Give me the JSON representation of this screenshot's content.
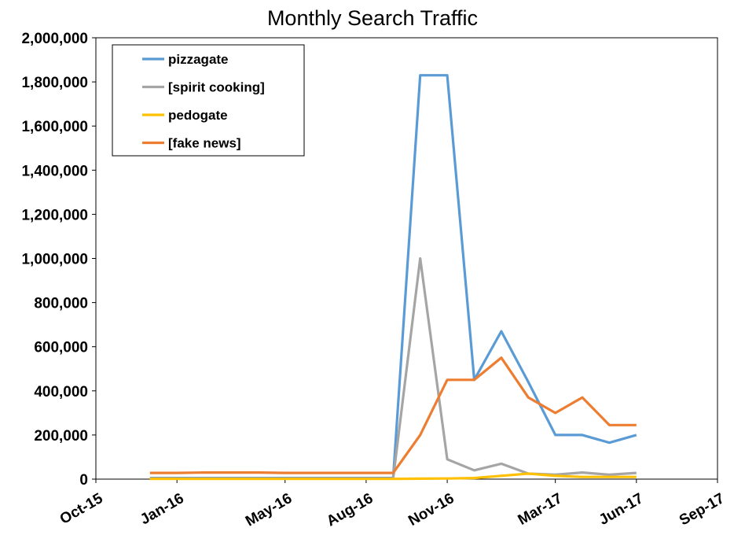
{
  "chart_data": {
    "type": "line",
    "title": "Monthly Search Traffic",
    "xlabel": "",
    "ylabel": "",
    "ylim": [
      0,
      2000000
    ],
    "y_ticks": [
      "0",
      "200,000",
      "400,000",
      "600,000",
      "800,000",
      "1,000,000",
      "1,200,000",
      "1,400,000",
      "1,600,000",
      "1,800,000",
      "2,000,000"
    ],
    "x_ticks": [
      "Oct-15",
      "Jan-16",
      "May-16",
      "Aug-16",
      "Nov-16",
      "Mar-17",
      "Jun-17",
      "Sep-17"
    ],
    "x_tick_months": [
      0,
      3,
      7,
      10,
      13,
      17,
      20,
      23
    ],
    "x": [
      "Dec-15",
      "Jan-16",
      "Feb-16",
      "Mar-16",
      "Apr-16",
      "May-16",
      "Jun-16",
      "Jul-16",
      "Aug-16",
      "Sep-16",
      "Oct-16",
      "Nov-16",
      "Dec-16",
      "Jan-17",
      "Feb-17",
      "Mar-17",
      "Apr-17",
      "May-17",
      "Jun-17",
      "Jul-17"
    ],
    "x_month_index": [
      2,
      3,
      4,
      5,
      6,
      7,
      8,
      9,
      10,
      11,
      12,
      13,
      14,
      15,
      16,
      17,
      18,
      19,
      20,
      21
    ],
    "grid": false,
    "legend_position": "top-left",
    "series": [
      {
        "name": "pizzagate",
        "color": "#5b9bd5",
        "values": [
          5000,
          5000,
          5000,
          5000,
          5000,
          5000,
          5000,
          5000,
          5000,
          5000,
          1830000,
          1830000,
          450000,
          670000,
          440000,
          200000,
          200000,
          165000,
          200000,
          null
        ]
      },
      {
        "name": "[spirit cooking]",
        "color": "#a5a5a5",
        "values": [
          3000,
          3000,
          3000,
          3000,
          3000,
          3000,
          3000,
          3000,
          3000,
          3000,
          1000000,
          90000,
          40000,
          70000,
          25000,
          20000,
          30000,
          20000,
          28000,
          null
        ]
      },
      {
        "name": "pedogate",
        "color": "#ffc000",
        "values": [
          1000,
          1000,
          1000,
          1000,
          1000,
          1000,
          1000,
          1000,
          1000,
          1000,
          2000,
          3000,
          5000,
          15000,
          25000,
          15000,
          10000,
          10000,
          10000,
          null
        ]
      },
      {
        "name": "[fake news]",
        "color": "#ed7d31",
        "values": [
          28000,
          28000,
          30000,
          30000,
          30000,
          28000,
          28000,
          28000,
          28000,
          28000,
          200000,
          450000,
          450000,
          550000,
          370000,
          300000,
          370000,
          245000,
          245000,
          null
        ]
      }
    ]
  }
}
